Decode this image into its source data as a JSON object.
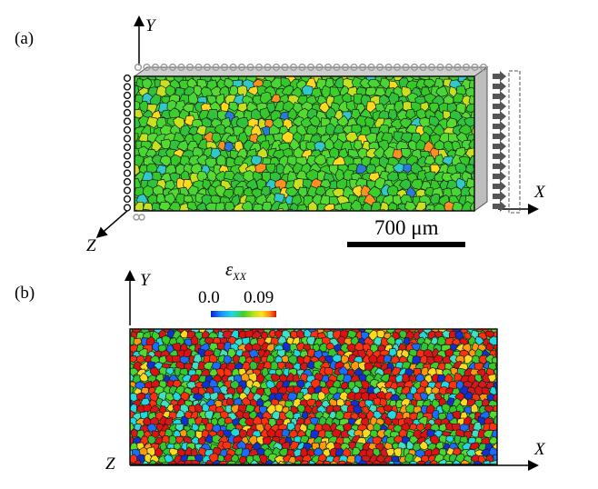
{
  "panel_a": {
    "label": "(a)",
    "axes": {
      "y": "Y",
      "x": "X",
      "z": "Z"
    },
    "scale_bar": "700 μm",
    "colors": {
      "base": "#3ccf2c",
      "boundary": "#1c1c1c",
      "support": "#9a9a9a",
      "arrows": "#555555"
    }
  },
  "panel_b": {
    "label": "(b)",
    "axes": {
      "y": "Y",
      "x": "X",
      "z": "Z"
    },
    "colorbar": {
      "variable_symbol": "ε",
      "variable_subscript": "XX",
      "min_label": "0.0",
      "max_label": "0.09",
      "stops": [
        "#1020d0",
        "#1a8cff",
        "#22d8e0",
        "#3ccf2c",
        "#b8e21e",
        "#ffe020",
        "#ff8a10",
        "#e01010"
      ]
    }
  }
}
